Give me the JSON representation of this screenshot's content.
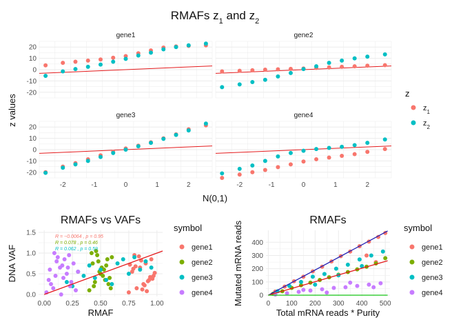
{
  "figure": {
    "title_main": "RMAFs z",
    "title_sub1": "1",
    "title_mid": " and z",
    "title_sub2": "2"
  },
  "colors": {
    "z1": "#F8766D",
    "z2": "#00BFC4",
    "gene1": "#F8766D",
    "gene2": "#7CAE00",
    "gene3": "#00BFC4",
    "gene4": "#C77CFF",
    "fit_line": "#E41A1C",
    "diag_blue": "#1F1FB4",
    "diag_green": "#2CCB2C",
    "grid": "#EBEBEB"
  },
  "chart_data": [
    {
      "type": "scatter",
      "id": "qq-facets",
      "xlabel": "N(0,1)",
      "ylabel": "z values",
      "xlim": [
        -2.75,
        2.75
      ],
      "xticks": [
        -2,
        -1,
        0,
        1,
        2
      ],
      "xtick_labels": [
        "-2",
        "-1",
        "0",
        "1",
        "2"
      ],
      "ylim": [
        -25,
        25
      ],
      "yticks": [
        -20,
        -10,
        0,
        10,
        20
      ],
      "ytick_labels": [
        "-20",
        "-10",
        "0",
        "10",
        "20"
      ],
      "legend": {
        "title": "z",
        "position": "right",
        "entries": [
          {
            "key": "z1",
            "label": "z",
            "sub": "1"
          },
          {
            "key": "z2",
            "label": "z",
            "sub": "2"
          }
        ]
      },
      "reference_line": {
        "slope": 1.2,
        "intercept": 0
      },
      "facets": [
        {
          "name": "gene1",
          "z1": [
            [
              -2.55,
              3.8
            ],
            [
              -2.0,
              6.0
            ],
            [
              -1.6,
              7.0
            ],
            [
              -1.2,
              8.0
            ],
            [
              -0.8,
              9.0
            ],
            [
              -0.4,
              10.5
            ],
            [
              0.0,
              12.0
            ],
            [
              0.4,
              14.5
            ],
            [
              0.8,
              17.0
            ],
            [
              1.2,
              19.5
            ],
            [
              1.6,
              20.5
            ],
            [
              2.0,
              21.0
            ],
            [
              2.55,
              21.5
            ]
          ],
          "z2": [
            [
              -2.55,
              -5.5
            ],
            [
              -2.0,
              -1.5
            ],
            [
              -1.6,
              0.5
            ],
            [
              -1.2,
              2.5
            ],
            [
              -0.8,
              4.5
            ],
            [
              -0.4,
              7.0
            ],
            [
              0.0,
              9.5
            ],
            [
              0.4,
              12.5
            ],
            [
              0.8,
              15.0
            ],
            [
              1.2,
              18.0
            ],
            [
              1.6,
              20.0
            ],
            [
              2.0,
              21.5
            ],
            [
              2.55,
              23.0
            ]
          ]
        },
        {
          "name": "gene2",
          "z1": [
            [
              -2.55,
              -1.5
            ],
            [
              -2.0,
              -1.0
            ],
            [
              -1.6,
              -0.5
            ],
            [
              -1.2,
              0.0
            ],
            [
              -0.8,
              0.3
            ],
            [
              -0.4,
              0.7
            ],
            [
              0.0,
              1.0
            ],
            [
              0.4,
              1.5
            ],
            [
              0.8,
              2.0
            ],
            [
              1.2,
              2.5
            ],
            [
              1.6,
              3.0
            ],
            [
              2.0,
              3.5
            ],
            [
              2.55,
              4.0
            ]
          ],
          "z2": [
            [
              -2.55,
              -15.5
            ],
            [
              -2.0,
              -13.0
            ],
            [
              -1.6,
              -11.0
            ],
            [
              -1.2,
              -9.0
            ],
            [
              -0.8,
              -6.0
            ],
            [
              -0.4,
              -3.0
            ],
            [
              0.0,
              0.5
            ],
            [
              0.4,
              3.0
            ],
            [
              0.8,
              6.0
            ],
            [
              1.2,
              8.0
            ],
            [
              1.6,
              10.0
            ],
            [
              2.0,
              11.5
            ],
            [
              2.55,
              13.5
            ]
          ]
        },
        {
          "name": "gene3",
          "z1": [
            [
              -2.55,
              -20.0
            ],
            [
              -2.0,
              -15.0
            ],
            [
              -1.6,
              -12.0
            ],
            [
              -1.2,
              -8.5
            ],
            [
              -0.8,
              -5.0
            ],
            [
              -0.4,
              -2.0
            ],
            [
              0.0,
              1.0
            ],
            [
              0.4,
              3.5
            ],
            [
              0.8,
              6.5
            ],
            [
              1.2,
              10.0
            ],
            [
              1.6,
              13.5
            ],
            [
              2.0,
              18.0
            ],
            [
              2.55,
              21.5
            ]
          ],
          "z2": [
            [
              -2.55,
              -20.5
            ],
            [
              -2.0,
              -16.0
            ],
            [
              -1.6,
              -13.0
            ],
            [
              -1.2,
              -10.0
            ],
            [
              -0.8,
              -6.5
            ],
            [
              -0.4,
              -3.0
            ],
            [
              0.0,
              0.0
            ],
            [
              0.4,
              3.0
            ],
            [
              0.8,
              6.0
            ],
            [
              1.2,
              9.5
            ],
            [
              1.6,
              13.0
            ],
            [
              2.0,
              17.0
            ],
            [
              2.55,
              23.0
            ]
          ]
        },
        {
          "name": "gene4",
          "z1": [
            [
              -2.55,
              -25.0
            ],
            [
              -2.0,
              -22.0
            ],
            [
              -1.6,
              -20.0
            ],
            [
              -1.2,
              -18.0
            ],
            [
              -0.8,
              -15.5
            ],
            [
              -0.4,
              -13.0
            ],
            [
              0.0,
              -10.5
            ],
            [
              0.4,
              -8.5
            ],
            [
              0.8,
              -7.0
            ],
            [
              1.2,
              -5.5
            ],
            [
              1.6,
              -4.0
            ],
            [
              2.0,
              -2.0
            ],
            [
              2.55,
              0.5
            ]
          ],
          "z2": [
            [
              -2.55,
              -21.0
            ],
            [
              -2.0,
              -17.0
            ],
            [
              -1.6,
              -14.0
            ],
            [
              -1.2,
              -10.0
            ],
            [
              -0.8,
              -6.0
            ],
            [
              -0.4,
              -3.0
            ],
            [
              0.0,
              -1.0
            ],
            [
              0.4,
              0.5
            ],
            [
              0.8,
              1.5
            ],
            [
              1.2,
              2.5
            ],
            [
              1.6,
              4.0
            ],
            [
              2.0,
              6.0
            ],
            [
              2.55,
              9.0
            ]
          ]
        }
      ]
    },
    {
      "type": "scatter",
      "id": "rmafs-vs-vafs",
      "title": "RMAFs vs VAFs",
      "xlabel": "RMAF",
      "ylabel": "DNA VAF",
      "xlim": [
        -0.05,
        1.05
      ],
      "xticks": [
        0,
        0.25,
        0.5,
        0.75,
        1.0
      ],
      "xtick_labels": [
        "0.00",
        "0.25",
        "0.50",
        "0.75",
        "1.00"
      ],
      "ylim": [
        -0.05,
        1.55
      ],
      "yticks": [
        0,
        0.5,
        1.0,
        1.5
      ],
      "ytick_labels": [
        "0.0",
        "0.5",
        "1.0",
        "1.5"
      ],
      "fit_line": {
        "x": [
          0.0,
          1.05
        ],
        "y": [
          0.0,
          1.05
        ]
      },
      "annotations": [
        {
          "series": "gene1",
          "text": "R = −0.0064 , p = 0.95"
        },
        {
          "series": "gene2",
          "text": "R = 0.078 , p = 0.46"
        },
        {
          "series": "gene3",
          "text": "R = 0.062 , p = 0.59"
        }
      ],
      "legend": {
        "title": "symbol",
        "position": "right",
        "entries": [
          "gene1",
          "gene2",
          "gene3",
          "gene4"
        ]
      },
      "series": [
        {
          "name": "gene1",
          "x": [
            0.75,
            0.82,
            0.88,
            0.93,
            0.97,
            0.78,
            0.85,
            0.9,
            0.95,
            0.8,
            0.87,
            0.92,
            0.98,
            0.76,
            0.84,
            0.89,
            0.94,
            0.79,
            0.86,
            0.91,
            0.96,
            0.81
          ],
          "y": [
            0.05,
            0.15,
            0.25,
            0.35,
            0.45,
            0.55,
            0.65,
            0.75,
            0.85,
            0.95,
            0.12,
            0.32,
            0.52,
            0.72,
            0.92,
            0.22,
            0.42,
            0.62,
            0.82,
            0.08,
            0.38,
            0.68
          ]
        },
        {
          "name": "gene2",
          "x": [
            0.4,
            0.45,
            0.5,
            0.55,
            0.6,
            0.42,
            0.48,
            0.53,
            0.58,
            0.44,
            0.51,
            0.56,
            0.47,
            0.52,
            0.57,
            0.43,
            0.49,
            0.54,
            0.59,
            0.46
          ],
          "y": [
            0.1,
            0.3,
            0.5,
            0.7,
            0.9,
            1.0,
            0.8,
            0.6,
            0.4,
            0.2,
            0.65,
            0.85,
            0.95,
            0.45,
            0.25,
            0.75,
            0.55,
            0.35,
            0.15,
            1.05
          ]
        },
        {
          "name": "gene3",
          "x": [
            0.2,
            0.35,
            0.5,
            0.65,
            0.8,
            0.95,
            0.3,
            0.45,
            0.6,
            0.75,
            0.9,
            0.25,
            0.4,
            0.55,
            0.7,
            0.85
          ],
          "y": [
            0.3,
            0.45,
            0.6,
            0.75,
            0.9,
            0.65,
            0.55,
            0.4,
            0.25,
            0.5,
            0.8,
            0.2,
            0.7,
            0.35,
            0.85,
            0.6
          ]
        },
        {
          "name": "gene4",
          "x": [
            0.02,
            0.06,
            0.1,
            0.14,
            0.18,
            0.22,
            0.26,
            0.3,
            0.04,
            0.08,
            0.12,
            0.16,
            0.2,
            0.24,
            0.28,
            0.05,
            0.11,
            0.17,
            0.23,
            0.09,
            0.15,
            0.21
          ],
          "y": [
            0.05,
            0.25,
            0.45,
            0.65,
            0.85,
            0.95,
            0.75,
            0.55,
            0.35,
            0.15,
            0.9,
            0.7,
            0.5,
            0.3,
            0.1,
            0.6,
            0.8,
            0.4,
            0.2,
            1.0,
            0.0,
            0.65
          ]
        }
      ]
    },
    {
      "type": "scatter",
      "id": "rmafs-reads",
      "title": "RMAFs",
      "xlabel": "Total mRNA reads * Purity",
      "ylabel": "Mutated mRNA reads",
      "xlim": [
        -10,
        520
      ],
      "xticks": [
        0,
        100,
        200,
        300,
        400,
        500
      ],
      "xtick_labels": [
        "0",
        "100",
        "200",
        "300",
        "400",
        "500"
      ],
      "ylim": [
        -10,
        490
      ],
      "yticks": [
        0,
        100,
        200,
        300,
        400
      ],
      "ytick_labels": [
        "0",
        "100",
        "200",
        "300",
        "400"
      ],
      "lines": [
        {
          "key": "diag_blue",
          "x": [
            0,
            510
          ],
          "y": [
            0,
            485
          ]
        },
        {
          "key": "fit_line",
          "x": [
            0,
            510
          ],
          "y": [
            0,
            260
          ]
        },
        {
          "key": "diag_green",
          "x": [
            0,
            510
          ],
          "y": [
            0,
            0
          ]
        }
      ],
      "legend": {
        "title": "symbol",
        "position": "right",
        "entries": [
          "gene1",
          "gene2",
          "gene3",
          "gene4"
        ]
      },
      "series": [
        {
          "name": "gene1",
          "x": [
            30,
            70,
            110,
            150,
            190,
            230,
            270,
            310,
            350,
            390,
            430,
            470,
            500,
            420,
            460
          ],
          "y": [
            28,
            65,
            105,
            140,
            180,
            215,
            255,
            295,
            330,
            370,
            405,
            440,
            470,
            300,
            250
          ]
        },
        {
          "name": "gene2",
          "x": [
            20,
            60,
            100,
            140,
            180,
            220,
            260,
            300,
            340,
            380,
            420,
            460,
            500
          ],
          "y": [
            10,
            30,
            55,
            75,
            95,
            115,
            135,
            155,
            175,
            195,
            215,
            240,
            280
          ]
        },
        {
          "name": "gene3",
          "x": [
            40,
            90,
            140,
            190,
            240,
            290,
            340,
            390,
            440,
            490,
            200,
            300,
            400
          ],
          "y": [
            30,
            70,
            100,
            140,
            160,
            200,
            230,
            270,
            300,
            330,
            80,
            150,
            220
          ]
        },
        {
          "name": "gene4",
          "x": [
            30,
            80,
            130,
            180,
            230,
            280,
            330,
            380,
            430,
            480,
            150,
            250,
            350,
            450
          ],
          "y": [
            5,
            15,
            25,
            35,
            45,
            55,
            60,
            70,
            80,
            90,
            40,
            20,
            95,
            60
          ]
        }
      ]
    }
  ]
}
